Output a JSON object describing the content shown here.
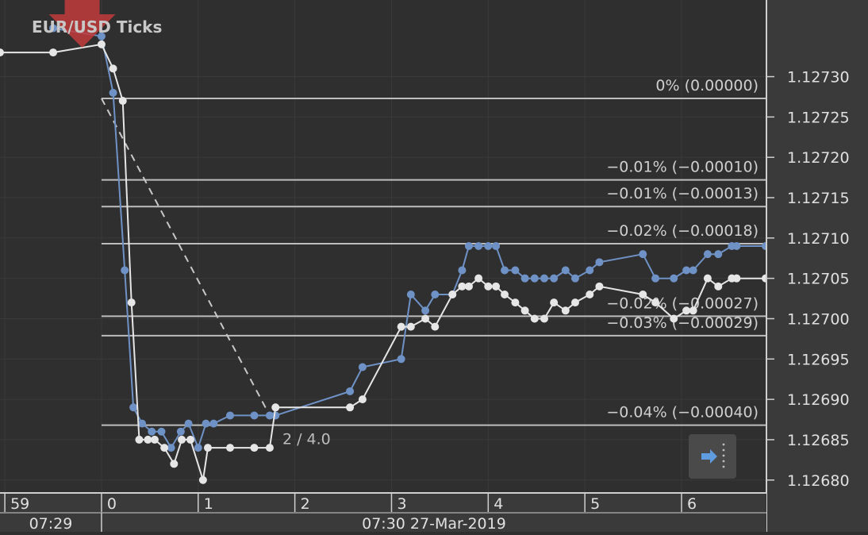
{
  "chart_data": {
    "type": "line",
    "title": "EUR/USD Ticks",
    "x_axis": {
      "tick_labels": [
        "59",
        "0",
        "1",
        "2",
        "3",
        "4",
        "5",
        "6"
      ],
      "tick_seconds": [
        -1,
        0,
        1,
        2,
        3,
        4,
        5,
        6
      ],
      "time_labels": [
        "07:29",
        "07:30 27-Mar-2019"
      ],
      "xlim_seconds": [
        -1.05,
        6.87
      ]
    },
    "y_axis": {
      "tick_labels": [
        "1.12730",
        "1.12725",
        "1.12720",
        "1.12715",
        "1.12710",
        "1.12705",
        "1.12700",
        "1.12695",
        "1.12690",
        "1.12685",
        "1.12680"
      ],
      "ylim": [
        1.126785,
        1.127395
      ]
    },
    "series": [
      {
        "role": "ask",
        "color": "#6f92c6",
        "x": [
          -0.5,
          0.0,
          0.12,
          0.24,
          0.33,
          0.42,
          0.52,
          0.62,
          0.72,
          0.82,
          0.9,
          1.0,
          1.08,
          1.16,
          1.33,
          1.58,
          1.74,
          1.8,
          2.57,
          2.7,
          3.1,
          3.2,
          3.35,
          3.45,
          3.63,
          3.73,
          3.8,
          3.9,
          4.0,
          4.08,
          4.17,
          4.28,
          4.38,
          4.48,
          4.58,
          4.68,
          4.8,
          4.9,
          5.05,
          5.15,
          5.6,
          5.73,
          5.92,
          6.05,
          6.12,
          6.27,
          6.38,
          6.52,
          6.57,
          6.87
        ],
        "y": [
          1.12736,
          1.12735,
          1.12728,
          1.12706,
          1.12689,
          1.12687,
          1.12686,
          1.12686,
          1.12684,
          1.12686,
          1.12687,
          1.12684,
          1.12687,
          1.12687,
          1.12688,
          1.12688,
          1.12688,
          1.12688,
          1.12691,
          1.12694,
          1.12695,
          1.12703,
          1.12701,
          1.12703,
          1.12703,
          1.12706,
          1.12709,
          1.12709,
          1.12709,
          1.12709,
          1.12706,
          1.12706,
          1.12705,
          1.12705,
          1.12705,
          1.12705,
          1.12706,
          1.12705,
          1.12706,
          1.12707,
          1.12708,
          1.12705,
          1.12705,
          1.12706,
          1.12706,
          1.12708,
          1.12708,
          1.12709,
          1.12709,
          1.12709
        ]
      },
      {
        "role": "bid",
        "color": "#e6e6e6",
        "x": [
          -1.05,
          -0.5,
          0.0,
          0.12,
          0.22,
          0.31,
          0.39,
          0.48,
          0.55,
          0.65,
          0.75,
          0.83,
          0.92,
          1.05,
          1.1,
          1.33,
          1.58,
          1.74,
          1.8,
          2.57,
          2.7,
          3.1,
          3.2,
          3.35,
          3.45,
          3.63,
          3.73,
          3.8,
          3.9,
          4.0,
          4.08,
          4.17,
          4.28,
          4.38,
          4.48,
          4.58,
          4.68,
          4.8,
          4.9,
          5.05,
          5.15,
          5.6,
          5.73,
          5.92,
          6.05,
          6.12,
          6.27,
          6.38,
          6.52,
          6.57,
          6.87
        ],
        "y": [
          1.12733,
          1.12733,
          1.12734,
          1.12731,
          1.12727,
          1.12702,
          1.12685,
          1.12685,
          1.12685,
          1.12684,
          1.12682,
          1.12685,
          1.12685,
          1.1268,
          1.12684,
          1.12684,
          1.12684,
          1.12684,
          1.12689,
          1.12689,
          1.1269,
          1.12699,
          1.12699,
          1.127,
          1.12699,
          1.12703,
          1.12704,
          1.12704,
          1.12705,
          1.12704,
          1.12704,
          1.12703,
          1.12702,
          1.12701,
          1.127,
          1.127,
          1.12702,
          1.12701,
          1.12702,
          1.12703,
          1.12704,
          1.12703,
          1.12702,
          1.127,
          1.12701,
          1.12701,
          1.12705,
          1.12704,
          1.12705,
          1.12705,
          1.12705
        ]
      }
    ],
    "fibonacci_levels": {
      "color": "#bdbdbd",
      "levels": [
        {
          "price": 1.127273,
          "label": "0% (0.00000)"
        },
        {
          "price": 1.127172,
          "label": "−0.01% (−0.00010)"
        },
        {
          "price": 1.127139,
          "label": "−0.01% (−0.00013)"
        },
        {
          "price": 1.127093,
          "label": "−0.02% (−0.00018)"
        },
        {
          "price": 1.127003,
          "label": "−0.02% (−0.00027)"
        },
        {
          "price": 1.126979,
          "label": "−0.03% (−0.00029)"
        },
        {
          "price": 1.126868,
          "label": "−0.04% (−0.00040)"
        }
      ]
    },
    "trendline": {
      "label": "2 / 4.0",
      "start": {
        "x": 0.0,
        "y": 1.127273
      },
      "end": {
        "x": 1.74,
        "y": 1.12688
      }
    },
    "marker": {
      "type": "sell-arrow",
      "color": "#c23b3b",
      "x": -0.2
    }
  }
}
